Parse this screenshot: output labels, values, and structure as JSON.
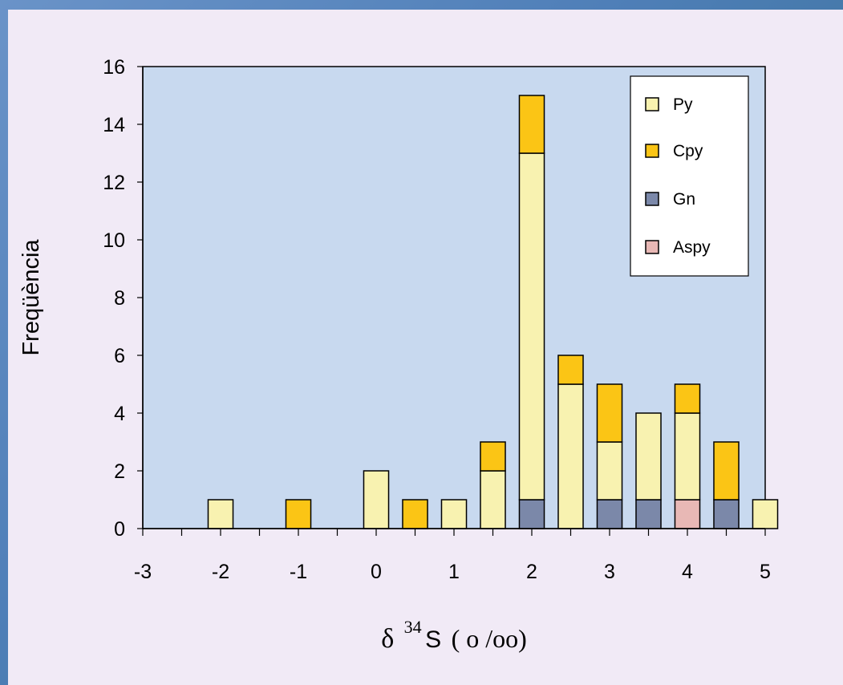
{
  "colors": {
    "plot_bg": "#c8d9ef",
    "Py": "#f8f2b0",
    "Cpy": "#fbc515",
    "Gn": "#7b88a9",
    "Aspy": "#e8b8b5"
  },
  "chart_data": {
    "type": "bar",
    "stacked": true,
    "xlabel_prefix": "δ",
    "xlabel_sup": "34",
    "xlabel_main": "S",
    "xlabel_unit": "( o /oo)",
    "ylabel": "Freqüència",
    "xlim": [
      -3,
      5
    ],
    "ylim": [
      0,
      16
    ],
    "xticks": [
      -3,
      -2,
      -1,
      0,
      1,
      2,
      3,
      4,
      5
    ],
    "yticks": [
      0,
      2,
      4,
      6,
      8,
      10,
      12,
      14,
      16
    ],
    "bin_width": 0.5,
    "bins": [
      {
        "center": -2.0,
        "Py": 1,
        "Cpy": 0,
        "Gn": 0,
        "Aspy": 0
      },
      {
        "center": -1.0,
        "Py": 0,
        "Cpy": 1,
        "Gn": 0,
        "Aspy": 0
      },
      {
        "center": 0.0,
        "Py": 2,
        "Cpy": 0,
        "Gn": 0,
        "Aspy": 0
      },
      {
        "center": 0.5,
        "Py": 0,
        "Cpy": 1,
        "Gn": 0,
        "Aspy": 0
      },
      {
        "center": 1.0,
        "Py": 1,
        "Cpy": 0,
        "Gn": 0,
        "Aspy": 0
      },
      {
        "center": 1.5,
        "Py": 2,
        "Cpy": 1,
        "Gn": 0,
        "Aspy": 0
      },
      {
        "center": 2.0,
        "Py": 12,
        "Cpy": 2,
        "Gn": 1,
        "Aspy": 0
      },
      {
        "center": 2.5,
        "Py": 5,
        "Cpy": 1,
        "Gn": 0,
        "Aspy": 0
      },
      {
        "center": 3.0,
        "Py": 2,
        "Cpy": 2,
        "Gn": 1,
        "Aspy": 0
      },
      {
        "center": 3.5,
        "Py": 3,
        "Cpy": 0,
        "Gn": 1,
        "Aspy": 0
      },
      {
        "center": 4.0,
        "Py": 3,
        "Cpy": 1,
        "Gn": 0,
        "Aspy": 1
      },
      {
        "center": 4.5,
        "Py": 0,
        "Cpy": 2,
        "Gn": 1,
        "Aspy": 0
      },
      {
        "center": 5.0,
        "Py": 1,
        "Cpy": 0,
        "Gn": 0,
        "Aspy": 0
      }
    ],
    "stack_order": [
      "Gn",
      "Aspy",
      "Py",
      "Cpy"
    ],
    "legend": [
      "Py",
      "Cpy",
      "Gn",
      "Aspy"
    ],
    "legend_position": "top-right",
    "grid": false
  }
}
